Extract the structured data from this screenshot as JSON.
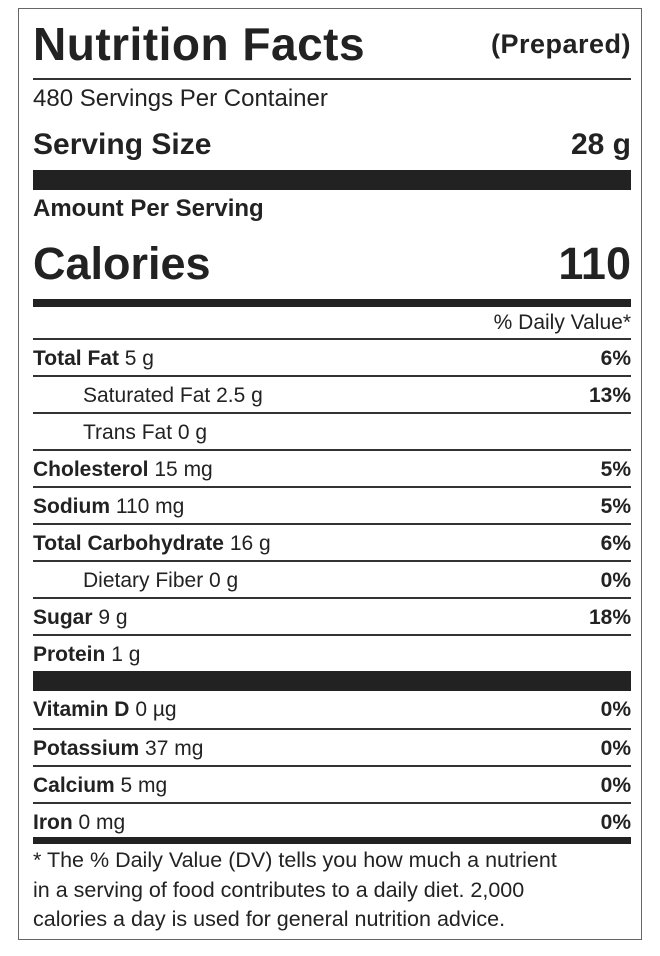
{
  "header": {
    "title": "Nutrition Facts",
    "subtitle": "(Prepared)",
    "servings": "480 Servings Per Container",
    "serving_size_label": "Serving Size",
    "serving_size": "28 g",
    "amount_label": "Amount Per Serving",
    "calories_label": "Calories",
    "calories": "110",
    "dv_header": "% Daily Value*"
  },
  "nutrients": [
    {
      "name": "Total Fat",
      "amount": "5 g",
      "dv": "6%"
    },
    {
      "name": "Saturated Fat",
      "amount": "2.5 g",
      "dv": "13%"
    },
    {
      "name": "Trans Fat",
      "amount": "0 g"
    },
    {
      "name": "Cholesterol",
      "amount": "15 mg",
      "dv": "5%"
    },
    {
      "name": "Sodium",
      "amount": "110 mg",
      "dv": "5%"
    },
    {
      "name": "Total Carbohydrate",
      "amount": "16 g",
      "dv": "6%"
    },
    {
      "name": "Dietary Fiber",
      "amount": "0 g",
      "dv": "0%"
    },
    {
      "name": "Sugar",
      "amount": "9 g",
      "dv": "18%"
    },
    {
      "name": "Protein",
      "amount": "1 g"
    }
  ],
  "vitamins": [
    {
      "name": "Vitamin D",
      "amount": "0 µg",
      "dv": "0%"
    },
    {
      "name": "Potassium",
      "amount": "37 mg",
      "dv": "0%"
    },
    {
      "name": "Calcium",
      "amount": "5 mg",
      "dv": "0%"
    },
    {
      "name": "Iron",
      "amount": "0 mg",
      "dv": "0%"
    }
  ],
  "footnote": {
    "lines": [
      "* The % Daily Value (DV) tells you how much a nutrient",
      "in a serving of food contributes to a daily diet. 2,000",
      "calories a day is used for general nutrition advice."
    ]
  }
}
